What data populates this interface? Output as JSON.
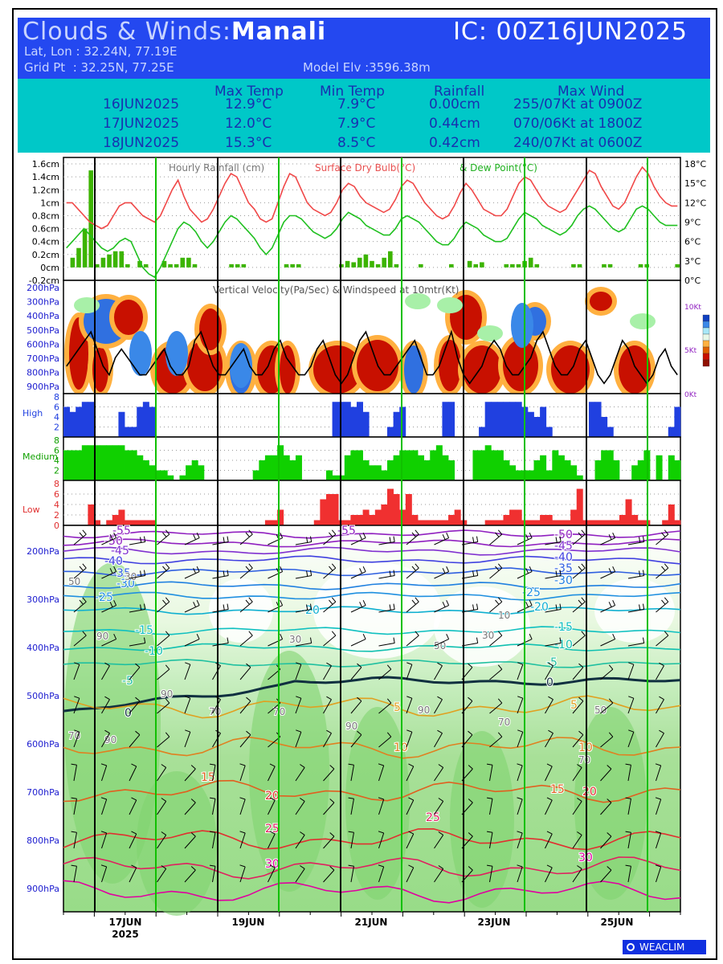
{
  "header": {
    "title_prefix": "Clouds & Winds:",
    "station": "Manali",
    "ic": "IC: 00Z16JUN2025",
    "latlon": "Lat, Lon : 32.24N, 77.19E",
    "gridpt": "Grid Pt  : 32.25N, 77.25E",
    "model_elev": "Model Elv :3596.38m"
  },
  "summary": {
    "col_max_temp": "Max Temp",
    "col_min_temp": "Min Temp",
    "col_rainfall": "Rainfall",
    "col_max_wind": "Max Wind",
    "rows": [
      {
        "date": "16JUN2025",
        "max": "12.9°C",
        "min": "7.9°C",
        "rain": "0.00cm",
        "wind": "255/07Kt at 0900Z"
      },
      {
        "date": "17JUN2025",
        "max": "12.0°C",
        "min": "7.9°C",
        "rain": "0.44cm",
        "wind": "070/06Kt at 1800Z"
      },
      {
        "date": "18JUN2025",
        "max": "15.3°C",
        "min": "8.5°C",
        "rain": "0.42cm",
        "wind": "240/07Kt at 0600Z"
      }
    ]
  },
  "chart_data": [
    {
      "type": "line",
      "title_parts": [
        "Hourly Rainfall (cm)",
        "Surface Dry Bulb(°C)",
        "& Dew Point(°C)"
      ],
      "left_ticks": [
        "1.6cm",
        "1.4cm",
        "1.2cm",
        "1cm",
        "0.8cm",
        "0.6cm",
        "0.4cm",
        "0.2cm",
        "0cm",
        "-0.2cm"
      ],
      "right_ticks": [
        "18°C",
        "15°C",
        "12°C",
        "9°C",
        "6°C",
        "3°C",
        "0°C"
      ],
      "ylim_rain": [
        -0.2,
        1.7
      ],
      "ylim_temp": [
        0,
        19
      ],
      "x_days": [
        "17JUN",
        "19JUN",
        "21JUN",
        "23JUN",
        "25JUN"
      ],
      "x_year": "2025",
      "colors": {
        "rain": "#3cb400",
        "dry_bulb": "#f04848",
        "dew_point": "#20c020"
      },
      "dry_bulb": [
        12,
        12,
        11,
        10,
        9,
        8.5,
        8,
        8.5,
        10,
        11.5,
        12,
        12,
        11,
        10,
        9.5,
        9,
        10,
        12,
        14,
        15.5,
        13,
        11,
        10,
        9,
        9.5,
        11,
        13,
        15,
        16.5,
        16,
        14,
        12,
        11,
        9.5,
        9,
        9.5,
        12,
        14.5,
        16.5,
        16,
        14,
        12,
        11,
        10.5,
        10,
        10.5,
        12,
        14,
        15,
        14.5,
        13,
        12,
        11.5,
        11,
        10.5,
        11,
        12.5,
        14.5,
        15.5,
        15,
        13.5,
        12,
        11,
        10,
        9.5,
        10,
        11.5,
        13.5,
        15,
        14,
        12.5,
        11,
        10.5,
        10,
        10,
        11,
        13,
        15,
        16,
        15.5,
        14,
        12.5,
        11.5,
        11,
        10.5,
        11,
        12.5,
        14,
        15.5,
        17,
        16.5,
        14.5,
        13,
        11.5,
        11,
        12,
        14,
        16,
        17.5,
        16.5,
        14.5,
        13,
        12,
        11.5,
        11.5
      ],
      "dew_point": [
        5,
        6,
        7,
        8,
        7,
        6,
        5,
        4.5,
        5,
        6,
        6.5,
        6,
        4,
        2,
        1,
        0.5,
        2,
        4,
        6,
        8,
        9,
        8.5,
        7.5,
        6,
        5,
        6,
        7.5,
        9,
        10,
        9.5,
        8.5,
        7.5,
        6.5,
        5,
        4,
        5,
        7,
        9,
        10,
        10,
        9.5,
        8.5,
        7.5,
        7,
        6.5,
        7,
        8,
        9.5,
        10.5,
        10,
        9.5,
        8.5,
        8,
        7.5,
        7,
        7,
        8,
        9.5,
        10,
        9.5,
        9,
        8,
        7,
        6,
        5.5,
        5.5,
        6.5,
        8,
        9,
        8.5,
        8,
        7,
        6.5,
        6,
        6,
        6.5,
        8,
        9.5,
        10.5,
        10,
        9.5,
        8.5,
        8,
        7.5,
        7,
        7.5,
        8.5,
        10,
        11,
        11.5,
        11,
        10,
        9,
        8,
        7.5,
        8,
        9.5,
        11,
        11.5,
        11,
        10,
        9,
        8.5,
        8.5,
        8.5
      ],
      "rain": [
        0,
        0.15,
        0.3,
        0.6,
        1.5,
        0.05,
        0.15,
        0.2,
        0.25,
        0.25,
        0.05,
        0,
        0.1,
        0.05,
        0,
        0,
        0.1,
        0.05,
        0.05,
        0.15,
        0.15,
        0.05,
        0,
        0,
        0,
        0,
        0,
        0.05,
        0.05,
        0.05,
        0,
        0,
        0,
        0,
        0,
        0,
        0.05,
        0.05,
        0.05,
        0,
        0,
        0,
        0,
        0,
        0,
        0.05,
        0.1,
        0.08,
        0.15,
        0.2,
        0.1,
        0.05,
        0.15,
        0.25,
        0.05,
        0,
        0,
        0,
        0.05,
        0,
        0,
        0,
        0,
        0.05,
        0,
        0,
        0.1,
        0.05,
        0.08,
        0,
        0,
        0,
        0.05,
        0.05,
        0.05,
        0.1,
        0.15,
        0.05,
        0,
        0,
        0,
        0,
        0,
        0.05,
        0.05,
        0,
        0,
        0,
        0.05,
        0.05,
        0,
        0,
        0,
        0,
        0.05,
        0.05,
        0,
        0,
        0,
        0,
        0.05
      ]
    },
    {
      "type": "heatmap",
      "title": "Vertical Velocity(Pa/Sec) & Windspeed at 10mtr(Kt)",
      "y_ticks": [
        "200hPa",
        "300hPa",
        "400hPa",
        "500hPa",
        "600hPa",
        "700hPa",
        "800hPa",
        "900hPa"
      ],
      "right_ticks": [
        "10Kt",
        "5Kt",
        "0Kt"
      ],
      "wind_10m": [
        3,
        4,
        5,
        6,
        7,
        5,
        3,
        2,
        4,
        5,
        4,
        3,
        2,
        2,
        3,
        4,
        5,
        3,
        2,
        2,
        3,
        6,
        7,
        5,
        3,
        2,
        2,
        3,
        4,
        5,
        3,
        2,
        2,
        3,
        5,
        6,
        4,
        3,
        2,
        2,
        3,
        5,
        6,
        4,
        2,
        1,
        2,
        4,
        6,
        7,
        5,
        3,
        2,
        2,
        3,
        4,
        5,
        6,
        4,
        2,
        2,
        3,
        5,
        7,
        4,
        2,
        1,
        2,
        3,
        5,
        6,
        5,
        3,
        2,
        2,
        3,
        4,
        6,
        7,
        5,
        3,
        2,
        2,
        3,
        5,
        6,
        4,
        2,
        1,
        2,
        4,
        6,
        5,
        3,
        2,
        1,
        2,
        4,
        5,
        3,
        2
      ]
    },
    {
      "type": "bar",
      "name": "High",
      "y_ticks": [
        "8",
        "6",
        "4",
        "2"
      ],
      "ylim": [
        0,
        8
      ],
      "color": "#2040e0",
      "values": [
        6,
        5,
        6,
        7,
        7,
        0,
        0,
        0,
        0,
        5,
        2,
        2,
        6,
        7,
        6,
        0,
        0,
        0,
        0,
        0,
        0,
        0,
        0,
        0,
        0,
        0,
        0,
        0,
        0,
        0,
        0,
        0,
        0,
        0,
        0,
        0,
        0,
        0,
        0,
        0,
        0,
        0,
        0,
        0,
        7,
        7,
        7,
        6,
        7,
        5,
        0,
        0,
        0,
        2,
        5,
        6,
        0,
        0,
        0,
        0,
        0,
        0,
        7,
        7,
        0,
        0,
        0,
        0,
        2,
        7,
        7,
        7,
        7,
        7,
        7,
        6,
        5,
        4,
        6,
        2,
        0,
        0,
        0,
        0,
        0,
        0,
        7,
        7,
        4,
        2,
        0,
        0,
        0,
        0,
        0,
        0,
        0,
        0,
        0,
        2,
        6
      ]
    },
    {
      "type": "bar",
      "name": "Medium",
      "y_ticks": [
        "8",
        "6",
        "4",
        "2"
      ],
      "ylim": [
        0,
        8
      ],
      "color": "#10d000",
      "values": [
        6,
        6,
        6,
        7,
        7,
        7,
        7,
        7,
        7,
        7,
        6,
        6,
        5,
        4,
        3,
        2,
        2,
        1,
        0,
        1,
        3,
        4,
        3,
        0,
        0,
        0,
        0,
        0,
        0,
        0,
        0,
        2,
        4,
        5,
        5,
        7,
        5,
        4,
        5,
        0,
        0,
        0,
        0,
        2,
        1,
        1,
        5,
        6,
        6,
        4,
        3,
        3,
        2,
        4,
        5,
        6,
        6,
        6,
        5,
        4,
        6,
        7,
        5,
        4,
        0,
        0,
        0,
        6,
        6,
        7,
        6,
        6,
        4,
        3,
        2,
        2,
        2,
        4,
        5,
        2,
        6,
        5,
        4,
        3,
        1,
        0,
        0,
        4,
        6,
        6,
        4,
        0,
        0,
        3,
        4,
        6,
        0,
        5,
        0,
        5,
        4
      ]
    },
    {
      "type": "bar",
      "name": "Low",
      "y_ticks": [
        "8",
        "6",
        "4",
        "2",
        "0"
      ],
      "ylim": [
        0,
        8
      ],
      "color": "#f03030",
      "values": [
        0,
        0,
        0,
        0,
        4,
        1,
        0,
        1,
        2,
        3,
        1,
        1,
        1,
        1,
        1,
        0,
        0,
        0,
        0,
        0,
        0,
        0,
        0,
        0,
        0,
        0,
        0,
        0,
        0,
        0,
        0,
        0,
        0,
        1,
        1,
        3,
        0,
        0,
        0,
        0,
        0,
        1,
        5,
        6,
        6,
        1,
        1,
        2,
        2,
        3,
        2,
        3,
        4,
        7,
        6,
        3,
        6,
        2,
        1,
        1,
        1,
        1,
        1,
        2,
        3,
        1,
        0,
        0,
        0,
        1,
        1,
        1,
        2,
        3,
        3,
        1,
        1,
        1,
        2,
        2,
        1,
        1,
        1,
        3,
        7,
        1,
        1,
        1,
        1,
        1,
        1,
        2,
        5,
        2,
        1,
        1,
        0,
        0,
        1,
        4,
        1
      ]
    },
    {
      "type": "heatmap",
      "name": "Relative humidity, isotherms and winds (hPa cross-section)",
      "y_ticks": [
        "200hPa",
        "300hPa",
        "400hPa",
        "500hPa",
        "600hPa",
        "700hPa",
        "800hPa",
        "900hPa"
      ],
      "isotherms": [
        "-55",
        "-50",
        "-45",
        "-40",
        "-35",
        "-30",
        "-25",
        "-20",
        "-15",
        "-10",
        "-5",
        "0",
        "5",
        "10",
        "15",
        "20",
        "25",
        "30"
      ],
      "rh_labels": [
        "50",
        "30",
        "90",
        "70",
        "10"
      ]
    }
  ],
  "branding": {
    "logo_text": "WEACLIM"
  }
}
